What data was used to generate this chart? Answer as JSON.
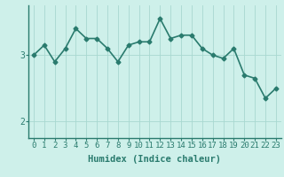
{
  "x": [
    0,
    1,
    2,
    3,
    4,
    5,
    6,
    7,
    8,
    9,
    10,
    11,
    12,
    13,
    14,
    15,
    16,
    17,
    18,
    19,
    20,
    21,
    22,
    23
  ],
  "y": [
    3.0,
    3.15,
    2.9,
    3.1,
    3.4,
    3.25,
    3.25,
    3.1,
    2.9,
    3.15,
    3.2,
    3.2,
    3.55,
    3.25,
    3.3,
    3.3,
    3.1,
    3.0,
    2.95,
    3.1,
    2.7,
    2.65,
    2.35,
    2.5
  ],
  "line_color": "#2a7b6e",
  "marker": "D",
  "marker_size": 2.5,
  "bg_color": "#cef0ea",
  "grid_color": "#a8d8d0",
  "xlabel": "Humidex (Indice chaleur)",
  "yticks": [
    2,
    3
  ],
  "xlim": [
    -0.5,
    23.5
  ],
  "ylim": [
    1.75,
    3.75
  ],
  "xlabel_fontsize": 7.5,
  "tick_fontsize": 6.5,
  "line_width": 1.2,
  "spine_color": "#2a7b6e"
}
